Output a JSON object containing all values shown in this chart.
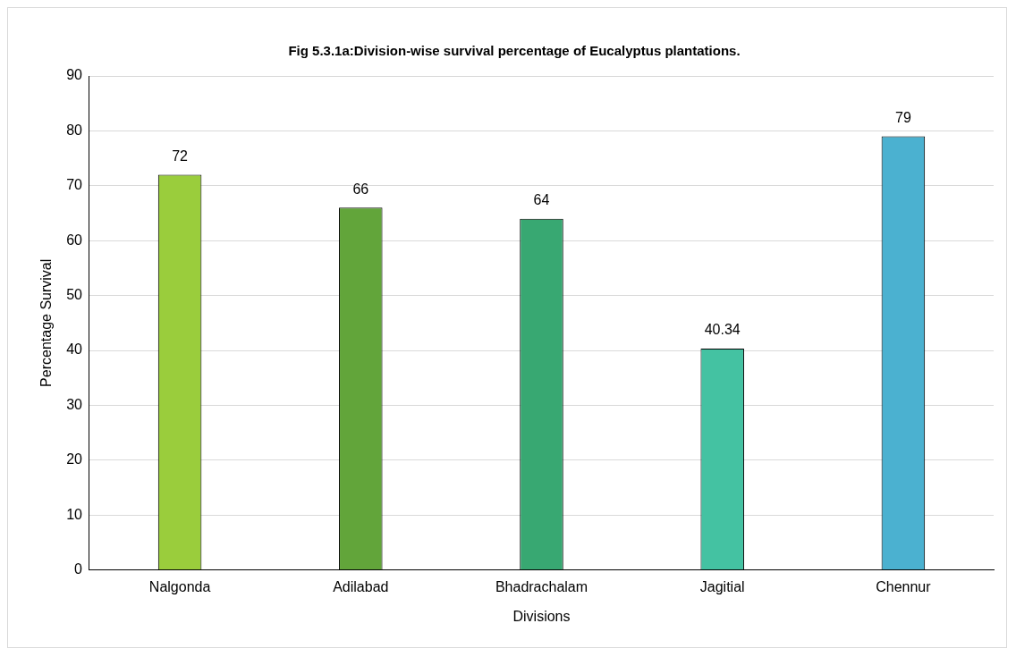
{
  "chart_data": {
    "type": "bar",
    "title": "Fig 5.3.1a:Division-wise survival percentage of Eucalyptus plantations.",
    "xlabel": "Divisions",
    "ylabel": "Percentage Survival",
    "categories": [
      "Nalgonda",
      "Adilabad",
      "Bhadrachalam",
      "Jagitial",
      "Chennur"
    ],
    "values": [
      72,
      66,
      64,
      40.34,
      79
    ],
    "colors": [
      "#9acd3c",
      "#62a53a",
      "#38a872",
      "#44c2a2",
      "#4bb1d0"
    ],
    "ylim": [
      0,
      90
    ],
    "yticks": [
      0,
      10,
      20,
      30,
      40,
      50,
      60,
      70,
      80,
      90
    ],
    "grid": "y",
    "legend": false,
    "data_labels": true
  }
}
